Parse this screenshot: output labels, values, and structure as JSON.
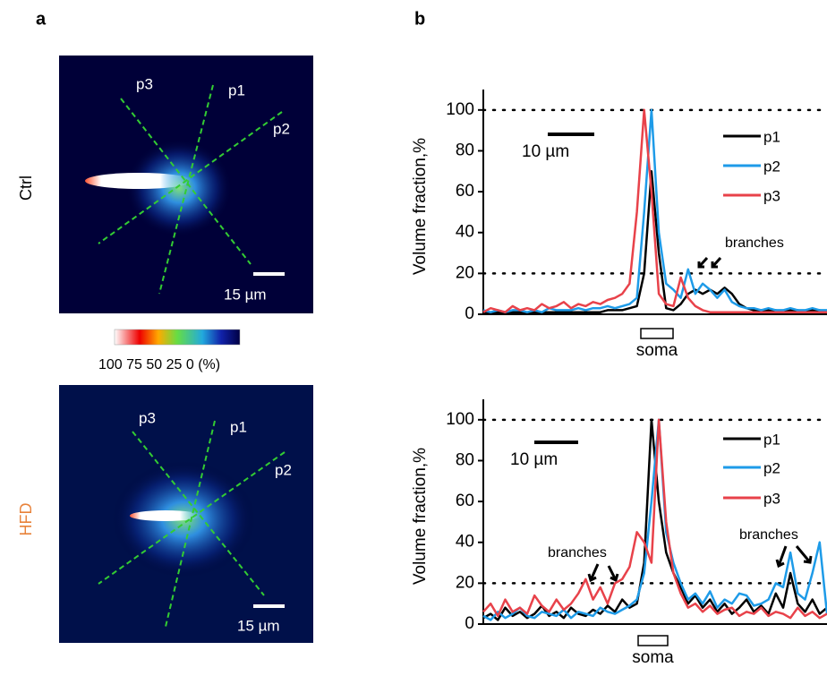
{
  "figure": {
    "panel_a": "a",
    "panel_b": "b",
    "ctrl": "Ctrl",
    "hfd": "HFD",
    "profile_labels": [
      "p1",
      "p2",
      "p3"
    ],
    "image_scale": "15 µm",
    "colorbar_label": "100 75 50 25 0 (%)"
  },
  "chart_data": [
    {
      "type": "line",
      "y_label": "Volume fraction,%",
      "ylim": [
        0,
        110
      ],
      "yticks": [
        0,
        20,
        40,
        60,
        80,
        100
      ],
      "reference_lines": [
        100,
        20
      ],
      "scale_label": "10 µm",
      "region_label": "soma",
      "annotations": [
        "branches"
      ],
      "series": [
        {
          "name": "p1",
          "color": "#000000",
          "values": [
            1,
            1,
            1,
            1,
            1,
            1,
            1,
            1,
            1,
            1,
            1,
            1,
            1,
            1,
            1,
            1,
            1,
            2,
            2,
            2,
            3,
            4,
            20,
            70,
            30,
            3,
            2,
            5,
            10,
            12,
            10,
            12,
            10,
            13,
            10,
            5,
            3,
            2,
            2,
            2,
            2,
            1,
            2,
            2,
            1,
            2,
            2,
            1
          ]
        },
        {
          "name": "p2",
          "color": "#1e9be8",
          "values": [
            2,
            1,
            2,
            1,
            2,
            2,
            1,
            2,
            1,
            3,
            2,
            2,
            2,
            3,
            2,
            3,
            3,
            4,
            3,
            4,
            5,
            8,
            50,
            100,
            40,
            15,
            12,
            8,
            22,
            10,
            15,
            12,
            8,
            12,
            6,
            4,
            3,
            3,
            2,
            3,
            2,
            2,
            3,
            2,
            2,
            3,
            2,
            2
          ]
        },
        {
          "name": "p3",
          "color": "#e8424a",
          "values": [
            1,
            3,
            2,
            1,
            4,
            2,
            3,
            2,
            5,
            3,
            4,
            6,
            3,
            5,
            4,
            6,
            5,
            7,
            8,
            10,
            15,
            50,
            100,
            60,
            10,
            5,
            4,
            18,
            8,
            4,
            2,
            1,
            1,
            1,
            1,
            1,
            1,
            1,
            1,
            1,
            1,
            1,
            1,
            1,
            1,
            1,
            1,
            1
          ]
        }
      ]
    },
    {
      "type": "line",
      "y_label": "Volume fraction,%",
      "ylim": [
        0,
        110
      ],
      "yticks": [
        0,
        20,
        40,
        60,
        80,
        100
      ],
      "reference_lines": [
        100,
        20
      ],
      "scale_label": "10 µm",
      "region_label": "soma",
      "annotations": [
        "branches",
        "branches"
      ],
      "series": [
        {
          "name": "p1",
          "color": "#000000",
          "values": [
            3,
            5,
            2,
            8,
            4,
            6,
            3,
            5,
            9,
            4,
            6,
            3,
            8,
            5,
            4,
            7,
            5,
            9,
            6,
            12,
            8,
            10,
            30,
            100,
            60,
            35,
            25,
            18,
            10,
            14,
            8,
            12,
            6,
            10,
            5,
            8,
            12,
            6,
            9,
            5,
            15,
            8,
            25,
            10,
            6,
            12,
            5,
            8
          ]
        },
        {
          "name": "p2",
          "color": "#1e9be8",
          "values": [
            4,
            2,
            6,
            3,
            5,
            8,
            4,
            3,
            6,
            5,
            4,
            7,
            3,
            6,
            5,
            4,
            8,
            6,
            5,
            7,
            9,
            12,
            25,
            60,
            100,
            45,
            30,
            20,
            12,
            15,
            10,
            16,
            8,
            12,
            10,
            15,
            14,
            9,
            10,
            12,
            20,
            18,
            35,
            15,
            12,
            25,
            40,
            5
          ]
        },
        {
          "name": "p3",
          "color": "#e8424a",
          "values": [
            6,
            10,
            4,
            12,
            6,
            8,
            5,
            14,
            9,
            6,
            12,
            7,
            10,
            15,
            22,
            12,
            18,
            10,
            20,
            22,
            28,
            45,
            40,
            30,
            100,
            50,
            25,
            15,
            8,
            10,
            6,
            9,
            5,
            7,
            8,
            4,
            6,
            5,
            8,
            4,
            6,
            5,
            3,
            8,
            4,
            6,
            3,
            5
          ]
        }
      ]
    }
  ]
}
